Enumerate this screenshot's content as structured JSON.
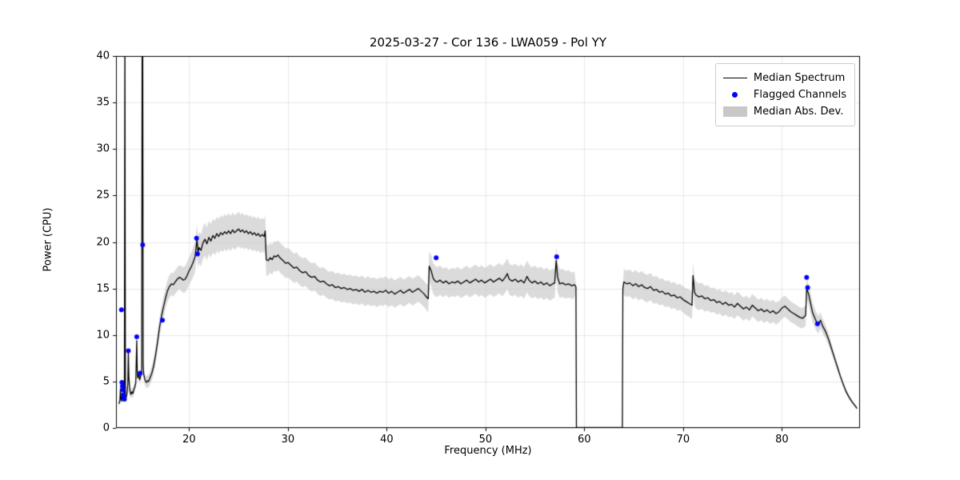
{
  "chart_data": {
    "type": "line",
    "title": "2025-03-27 - Cor 136 - LWA059 - Pol YY",
    "xlabel": "Frequency (MHz)",
    "ylabel": "Power (CPU)",
    "xlim": [
      12.6,
      87.9
    ],
    "ylim": [
      0,
      40
    ],
    "xticks": [
      20,
      30,
      40,
      50,
      60,
      70,
      80
    ],
    "yticks": [
      0,
      5,
      10,
      15,
      20,
      25,
      30,
      35,
      40
    ],
    "grid": true,
    "colors": {
      "median_line": "#000000",
      "flagged_marker": "#0000ff",
      "mad_band": "#c8c8c8"
    },
    "legend": {
      "position": "upper right",
      "entries": [
        {
          "label": "Median Spectrum",
          "type": "line",
          "color": "#000000"
        },
        {
          "label": "Flagged Channels",
          "type": "marker",
          "color": "#0000ff"
        },
        {
          "label": "Median Abs. Dev.",
          "type": "patch",
          "color": "#c8c8c8"
        }
      ]
    },
    "median_spectrum_points": [
      [
        12.9,
        2.6
      ],
      [
        13.0,
        3.0
      ],
      [
        13.05,
        4.2
      ],
      [
        13.1,
        3.2
      ],
      [
        13.15,
        2.9
      ],
      [
        13.2,
        3.4
      ],
      [
        13.3,
        3.1
      ],
      [
        13.4,
        3.6
      ],
      [
        13.45,
        3.2
      ],
      [
        13.5,
        45
      ],
      [
        13.55,
        3.4
      ],
      [
        13.6,
        3.2
      ],
      [
        13.7,
        3.6
      ],
      [
        13.8,
        4.8
      ],
      [
        13.85,
        8.2
      ],
      [
        13.9,
        5.5
      ],
      [
        14.0,
        4.0
      ],
      [
        14.1,
        3.6
      ],
      [
        14.2,
        3.9
      ],
      [
        14.3,
        3.7
      ],
      [
        14.4,
        4.1
      ],
      [
        14.5,
        4.4
      ],
      [
        14.6,
        4.8
      ],
      [
        14.7,
        9.4
      ],
      [
        14.75,
        6.2
      ],
      [
        14.8,
        5.4
      ],
      [
        14.9,
        5.8
      ],
      [
        15.0,
        5.2
      ],
      [
        15.1,
        5.6
      ],
      [
        15.2,
        6.0
      ],
      [
        15.25,
        45
      ],
      [
        15.3,
        45
      ],
      [
        15.35,
        6.8
      ],
      [
        15.4,
        5.8
      ],
      [
        15.5,
        5.3
      ],
      [
        15.6,
        5.0
      ],
      [
        15.7,
        4.9
      ],
      [
        15.8,
        5.1
      ],
      [
        15.9,
        5.0
      ],
      [
        16.0,
        5.3
      ],
      [
        16.2,
        5.8
      ],
      [
        16.4,
        6.6
      ],
      [
        16.6,
        7.8
      ],
      [
        16.8,
        9.2
      ],
      [
        17.0,
        10.8
      ],
      [
        17.2,
        12.0
      ],
      [
        17.4,
        13.0
      ],
      [
        17.6,
        13.9
      ],
      [
        17.8,
        14.7
      ],
      [
        18.0,
        15.2
      ],
      [
        18.2,
        15.5
      ],
      [
        18.4,
        15.4
      ],
      [
        18.6,
        15.7
      ],
      [
        18.8,
        16.0
      ],
      [
        19.0,
        16.2
      ],
      [
        19.2,
        16.1
      ],
      [
        19.4,
        15.9
      ],
      [
        19.6,
        16.0
      ],
      [
        19.8,
        16.4
      ],
      [
        20.0,
        16.9
      ],
      [
        20.2,
        17.3
      ],
      [
        20.4,
        17.8
      ],
      [
        20.6,
        18.4
      ],
      [
        20.8,
        20.3
      ],
      [
        20.9,
        18.8
      ],
      [
        21.0,
        19.4
      ],
      [
        21.2,
        19.1
      ],
      [
        21.4,
        19.9
      ],
      [
        21.6,
        20.3
      ],
      [
        21.8,
        19.8
      ],
      [
        22.0,
        20.5
      ],
      [
        22.2,
        20.1
      ],
      [
        22.4,
        20.7
      ],
      [
        22.6,
        20.4
      ],
      [
        22.8,
        20.9
      ],
      [
        23.0,
        20.6
      ],
      [
        23.2,
        21.0
      ],
      [
        23.4,
        20.8
      ],
      [
        23.6,
        21.1
      ],
      [
        23.8,
        20.9
      ],
      [
        24.0,
        21.2
      ],
      [
        24.2,
        20.9
      ],
      [
        24.4,
        21.3
      ],
      [
        24.6,
        21.0
      ],
      [
        24.8,
        21.2
      ],
      [
        25.0,
        21.4
      ],
      [
        25.2,
        21.1
      ],
      [
        25.4,
        21.3
      ],
      [
        25.6,
        21.0
      ],
      [
        25.8,
        21.2
      ],
      [
        26.0,
        20.9
      ],
      [
        26.2,
        21.1
      ],
      [
        26.4,
        20.8
      ],
      [
        26.6,
        21.0
      ],
      [
        26.8,
        20.7
      ],
      [
        27.0,
        20.9
      ],
      [
        27.2,
        20.6
      ],
      [
        27.4,
        20.8
      ],
      [
        27.6,
        20.6
      ],
      [
        27.7,
        21.2
      ],
      [
        27.8,
        18.1
      ],
      [
        28.0,
        18.0
      ],
      [
        28.2,
        18.3
      ],
      [
        28.4,
        18.1
      ],
      [
        28.6,
        18.5
      ],
      [
        28.8,
        18.4
      ],
      [
        29.0,
        18.6
      ],
      [
        29.2,
        18.3
      ],
      [
        29.4,
        18.1
      ],
      [
        29.6,
        17.9
      ],
      [
        29.8,
        17.7
      ],
      [
        30.0,
        17.8
      ],
      [
        30.3,
        17.5
      ],
      [
        30.6,
        17.2
      ],
      [
        30.9,
        17.3
      ],
      [
        31.2,
        16.9
      ],
      [
        31.5,
        16.7
      ],
      [
        31.8,
        16.8
      ],
      [
        32.1,
        16.4
      ],
      [
        32.4,
        16.2
      ],
      [
        32.7,
        16.3
      ],
      [
        33.0,
        15.9
      ],
      [
        33.3,
        15.7
      ],
      [
        33.6,
        15.8
      ],
      [
        33.9,
        15.5
      ],
      [
        34.2,
        15.3
      ],
      [
        34.5,
        15.4
      ],
      [
        34.8,
        15.1
      ],
      [
        35.1,
        15.2
      ],
      [
        35.4,
        15.0
      ],
      [
        35.7,
        15.1
      ],
      [
        36.0,
        14.9
      ],
      [
        36.3,
        15.0
      ],
      [
        36.6,
        14.8
      ],
      [
        36.9,
        14.9
      ],
      [
        37.2,
        14.7
      ],
      [
        37.5,
        14.9
      ],
      [
        37.8,
        14.6
      ],
      [
        38.1,
        14.8
      ],
      [
        38.4,
        14.6
      ],
      [
        38.7,
        14.7
      ],
      [
        39.0,
        14.5
      ],
      [
        39.3,
        14.7
      ],
      [
        39.6,
        14.6
      ],
      [
        39.9,
        14.8
      ],
      [
        40.2,
        14.5
      ],
      [
        40.5,
        14.7
      ],
      [
        40.8,
        14.4
      ],
      [
        41.1,
        14.6
      ],
      [
        41.4,
        14.8
      ],
      [
        41.7,
        14.5
      ],
      [
        42.0,
        14.7
      ],
      [
        42.3,
        14.9
      ],
      [
        42.6,
        14.6
      ],
      [
        42.9,
        14.8
      ],
      [
        43.2,
        15.0
      ],
      [
        43.5,
        14.7
      ],
      [
        43.8,
        14.4
      ],
      [
        44.0,
        14.1
      ],
      [
        44.2,
        13.9
      ],
      [
        44.3,
        17.4
      ],
      [
        44.5,
        16.9
      ],
      [
        44.7,
        16.1
      ],
      [
        44.9,
        15.8
      ],
      [
        45.1,
        15.7
      ],
      [
        45.4,
        15.9
      ],
      [
        45.7,
        15.6
      ],
      [
        46.0,
        15.8
      ],
      [
        46.3,
        15.5
      ],
      [
        46.6,
        15.7
      ],
      [
        46.9,
        15.6
      ],
      [
        47.2,
        15.8
      ],
      [
        47.5,
        15.5
      ],
      [
        47.8,
        15.7
      ],
      [
        48.1,
        15.9
      ],
      [
        48.4,
        15.6
      ],
      [
        48.7,
        15.8
      ],
      [
        49.0,
        16.0
      ],
      [
        49.3,
        15.7
      ],
      [
        49.6,
        15.9
      ],
      [
        49.9,
        15.6
      ],
      [
        50.2,
        15.8
      ],
      [
        50.5,
        16.0
      ],
      [
        50.8,
        15.7
      ],
      [
        51.1,
        15.9
      ],
      [
        51.4,
        16.1
      ],
      [
        51.7,
        15.8
      ],
      [
        52.0,
        16.2
      ],
      [
        52.2,
        16.6
      ],
      [
        52.4,
        16.0
      ],
      [
        52.7,
        15.8
      ],
      [
        53.0,
        16.0
      ],
      [
        53.3,
        15.7
      ],
      [
        53.6,
        15.9
      ],
      [
        53.9,
        15.6
      ],
      [
        54.2,
        16.3
      ],
      [
        54.4,
        15.9
      ],
      [
        54.7,
        15.6
      ],
      [
        55.0,
        15.8
      ],
      [
        55.3,
        15.5
      ],
      [
        55.6,
        15.7
      ],
      [
        55.9,
        15.4
      ],
      [
        56.2,
        15.6
      ],
      [
        56.5,
        15.3
      ],
      [
        56.8,
        15.5
      ],
      [
        57.0,
        15.6
      ],
      [
        57.15,
        18.0
      ],
      [
        57.3,
        16.2
      ],
      [
        57.5,
        15.5
      ],
      [
        57.8,
        15.6
      ],
      [
        58.1,
        15.4
      ],
      [
        58.4,
        15.5
      ],
      [
        58.7,
        15.3
      ],
      [
        59.0,
        15.4
      ],
      [
        59.15,
        15.2
      ],
      [
        59.2,
        0.05
      ],
      [
        60.0,
        0.05
      ],
      [
        61.0,
        0.05
      ],
      [
        62.0,
        0.05
      ],
      [
        63.0,
        0.05
      ],
      [
        63.85,
        0.05
      ],
      [
        63.9,
        15.0
      ],
      [
        64.0,
        15.7
      ],
      [
        64.3,
        15.5
      ],
      [
        64.6,
        15.6
      ],
      [
        64.9,
        15.3
      ],
      [
        65.2,
        15.5
      ],
      [
        65.5,
        15.2
      ],
      [
        65.8,
        15.4
      ],
      [
        66.1,
        15.1
      ],
      [
        66.4,
        15.0
      ],
      [
        66.7,
        15.2
      ],
      [
        67.0,
        14.8
      ],
      [
        67.3,
        14.9
      ],
      [
        67.6,
        14.6
      ],
      [
        67.9,
        14.7
      ],
      [
        68.2,
        14.4
      ],
      [
        68.5,
        14.5
      ],
      [
        68.8,
        14.2
      ],
      [
        69.1,
        14.3
      ],
      [
        69.4,
        14.0
      ],
      [
        69.7,
        14.1
      ],
      [
        70.0,
        13.8
      ],
      [
        70.3,
        13.6
      ],
      [
        70.6,
        13.4
      ],
      [
        70.9,
        13.2
      ],
      [
        71.0,
        16.4
      ],
      [
        71.15,
        14.6
      ],
      [
        71.3,
        14.3
      ],
      [
        71.6,
        14.1
      ],
      [
        71.9,
        14.2
      ],
      [
        72.2,
        13.9
      ],
      [
        72.5,
        14.0
      ],
      [
        72.8,
        13.7
      ],
      [
        73.1,
        13.8
      ],
      [
        73.4,
        13.5
      ],
      [
        73.7,
        13.6
      ],
      [
        74.0,
        13.3
      ],
      [
        74.3,
        13.5
      ],
      [
        74.6,
        13.2
      ],
      [
        74.9,
        13.3
      ],
      [
        75.2,
        13.0
      ],
      [
        75.5,
        13.4
      ],
      [
        75.8,
        13.1
      ],
      [
        76.1,
        12.8
      ],
      [
        76.4,
        13.0
      ],
      [
        76.7,
        12.7
      ],
      [
        77.0,
        13.2
      ],
      [
        77.3,
        12.9
      ],
      [
        77.6,
        12.6
      ],
      [
        77.9,
        12.8
      ],
      [
        78.2,
        12.5
      ],
      [
        78.5,
        12.7
      ],
      [
        78.8,
        12.4
      ],
      [
        79.1,
        12.6
      ],
      [
        79.4,
        12.3
      ],
      [
        79.7,
        12.5
      ],
      [
        80.0,
        12.9
      ],
      [
        80.3,
        13.1
      ],
      [
        80.6,
        12.8
      ],
      [
        80.9,
        12.5
      ],
      [
        81.2,
        12.3
      ],
      [
        81.5,
        12.1
      ],
      [
        81.8,
        11.9
      ],
      [
        82.1,
        11.8
      ],
      [
        82.4,
        12.1
      ],
      [
        82.5,
        15.0
      ],
      [
        82.7,
        14.4
      ],
      [
        82.9,
        13.4
      ],
      [
        83.1,
        12.4
      ],
      [
        83.3,
        11.9
      ],
      [
        83.5,
        11.4
      ],
      [
        83.7,
        11.1
      ],
      [
        83.9,
        11.6
      ],
      [
        84.1,
        11.0
      ],
      [
        84.4,
        10.4
      ],
      [
        84.7,
        9.6
      ],
      [
        85.0,
        8.6
      ],
      [
        85.3,
        7.6
      ],
      [
        85.6,
        6.6
      ],
      [
        85.9,
        5.6
      ],
      [
        86.2,
        4.7
      ],
      [
        86.5,
        3.9
      ],
      [
        86.8,
        3.3
      ],
      [
        87.1,
        2.8
      ],
      [
        87.4,
        2.4
      ],
      [
        87.6,
        2.1
      ]
    ],
    "mad_band_control": [
      [
        12.9,
        0.4
      ],
      [
        13.4,
        0.4
      ],
      [
        14.0,
        0.5
      ],
      [
        15.0,
        0.5
      ],
      [
        16.0,
        0.7
      ],
      [
        17.0,
        1.0
      ],
      [
        18.0,
        1.2
      ],
      [
        19.0,
        1.3
      ],
      [
        20.0,
        1.5
      ],
      [
        21.0,
        1.7
      ],
      [
        22.0,
        1.8
      ],
      [
        24.0,
        1.9
      ],
      [
        26.0,
        1.8
      ],
      [
        27.7,
        1.8
      ],
      [
        28.0,
        1.6
      ],
      [
        30.0,
        1.6
      ],
      [
        33.0,
        1.5
      ],
      [
        36.0,
        1.5
      ],
      [
        40.0,
        1.5
      ],
      [
        44.0,
        1.4
      ],
      [
        44.5,
        1.7
      ],
      [
        46.0,
        1.5
      ],
      [
        50.0,
        1.6
      ],
      [
        54.0,
        1.7
      ],
      [
        57.0,
        1.6
      ],
      [
        59.0,
        1.4
      ],
      [
        59.18,
        0
      ],
      [
        63.88,
        0
      ],
      [
        64.0,
        1.4
      ],
      [
        66.0,
        1.5
      ],
      [
        68.0,
        1.4
      ],
      [
        70.0,
        1.4
      ],
      [
        71.0,
        1.5
      ],
      [
        73.0,
        1.3
      ],
      [
        75.0,
        1.3
      ],
      [
        77.0,
        1.2
      ],
      [
        79.0,
        1.2
      ],
      [
        81.0,
        1.1
      ],
      [
        82.5,
        1.1
      ],
      [
        83.5,
        1.0
      ],
      [
        84.5,
        0.7
      ],
      [
        85.5,
        0.4
      ],
      [
        86.5,
        0.25
      ],
      [
        87.6,
        0.15
      ]
    ],
    "flagged_channels": [
      [
        13.15,
        12.7
      ],
      [
        13.2,
        4.9
      ],
      [
        13.25,
        4.5
      ],
      [
        13.3,
        4.1
      ],
      [
        13.35,
        3.6
      ],
      [
        13.4,
        3.3
      ],
      [
        13.45,
        3.1
      ],
      [
        13.85,
        8.3
      ],
      [
        14.7,
        9.8
      ],
      [
        15.05,
        5.9
      ],
      [
        15.3,
        19.7
      ],
      [
        17.3,
        11.6
      ],
      [
        20.75,
        20.4
      ],
      [
        20.85,
        18.7
      ],
      [
        45.0,
        18.3
      ],
      [
        57.2,
        18.4
      ],
      [
        82.5,
        16.2
      ],
      [
        82.6,
        15.1
      ],
      [
        83.6,
        11.2
      ]
    ]
  }
}
